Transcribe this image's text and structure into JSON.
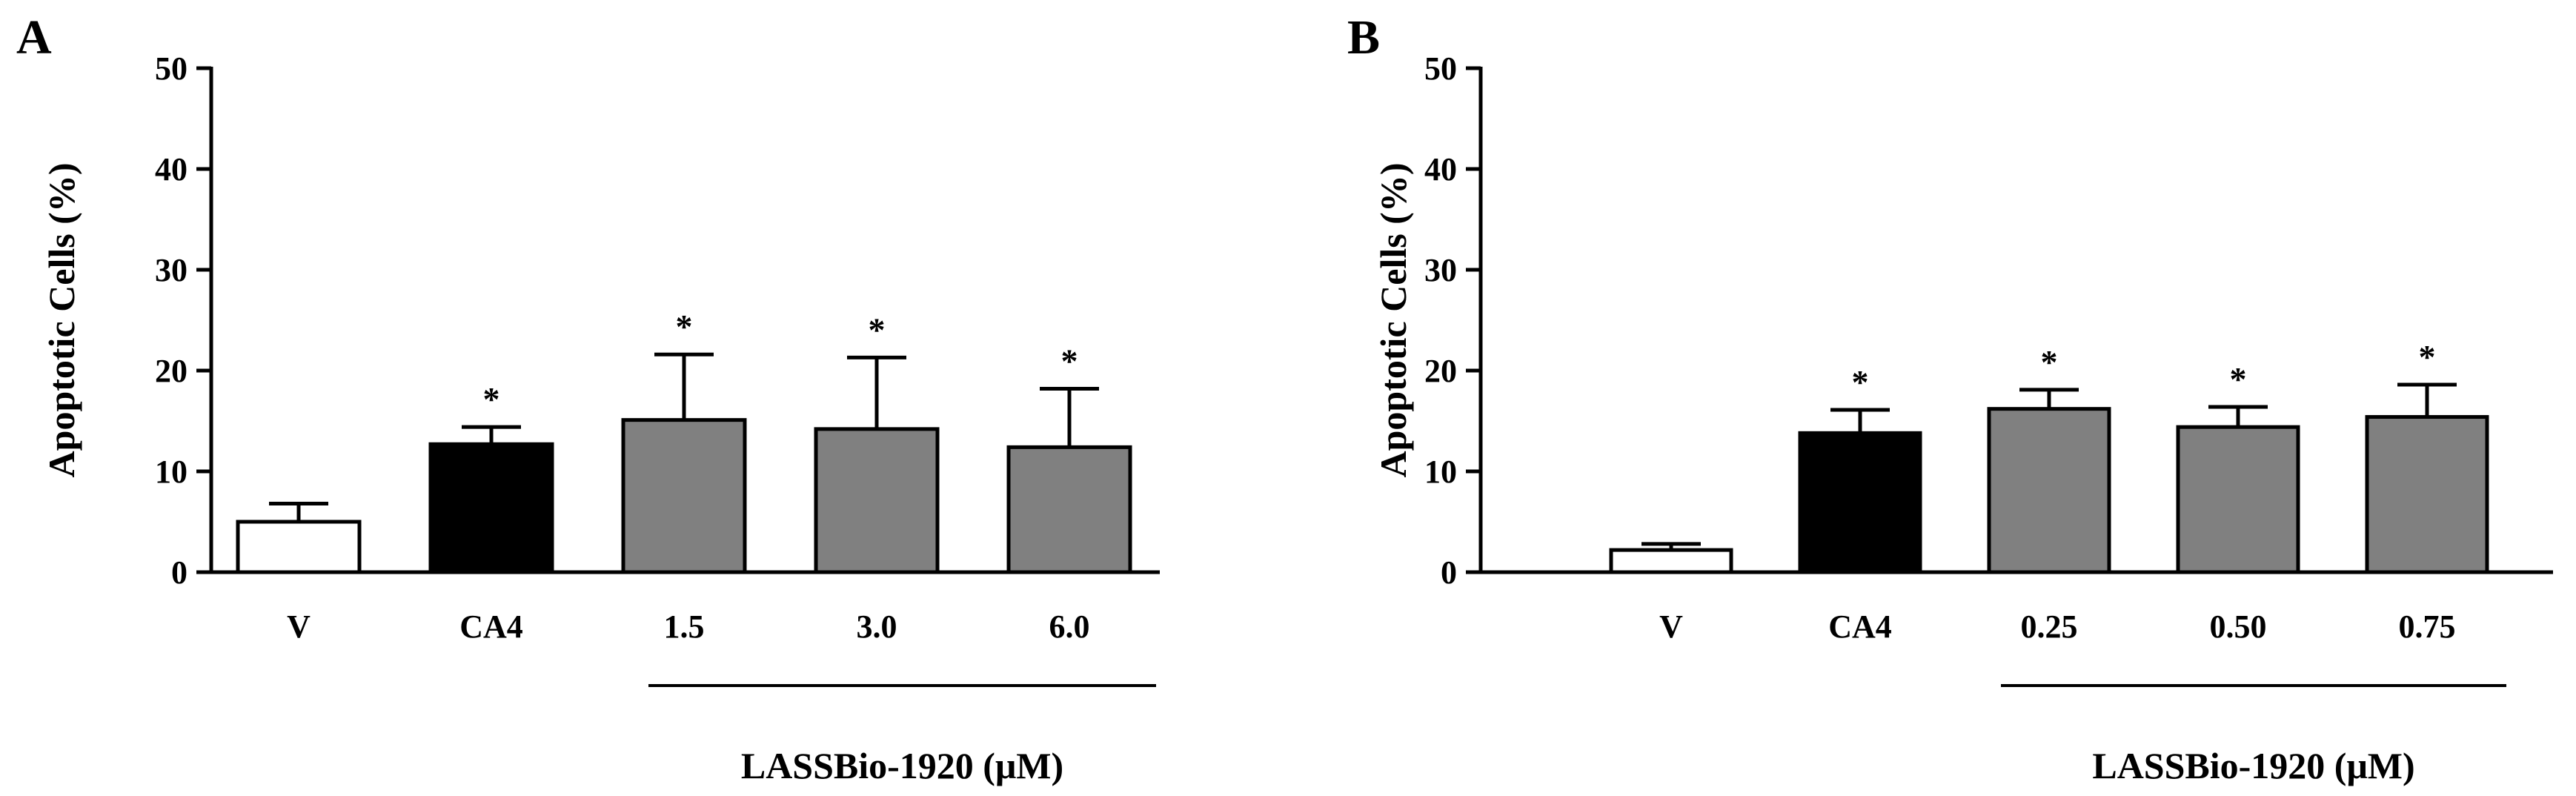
{
  "chart_data": [
    {
      "panel": "A",
      "type": "bar",
      "ylabel": "Apoptotic Cells (%)",
      "ylim": [
        0,
        50
      ],
      "yticks": [
        "0",
        "10",
        "20",
        "30",
        "40",
        "50"
      ],
      "categories": [
        "V",
        "CA4",
        "1.5",
        "3.0",
        "6.0"
      ],
      "values": [
        5,
        12.7,
        15.1,
        14.2,
        12.4
      ],
      "errors": [
        1.8,
        1.7,
        6.5,
        7.1,
        5.8
      ],
      "significance": [
        "",
        "*",
        "*",
        "*",
        "*"
      ],
      "colors": [
        "#ffffff",
        "#000000",
        "#808080",
        "#808080",
        "#808080"
      ],
      "group_label": "LASSBio-1920 (μM)",
      "group_categories": [
        "1.5",
        "3.0",
        "6.0"
      ]
    },
    {
      "panel": "B",
      "type": "bar",
      "ylabel": "Apoptotic Cells (%)",
      "ylim": [
        0,
        50
      ],
      "yticks": [
        "0",
        "10",
        "20",
        "30",
        "40",
        "50"
      ],
      "categories": [
        "V",
        "CA4",
        "0.25",
        "0.50",
        "0.75"
      ],
      "values": [
        2.2,
        13.8,
        16.2,
        14.4,
        15.4
      ],
      "errors": [
        0.6,
        2.3,
        1.9,
        2.0,
        3.2
      ],
      "significance": [
        "",
        "*",
        "*",
        "*",
        "*"
      ],
      "colors": [
        "#ffffff",
        "#000000",
        "#808080",
        "#808080",
        "#808080"
      ],
      "group_label": "LASSBio-1920 (μM)",
      "group_categories": [
        "0.25",
        "0.50",
        "0.75"
      ]
    }
  ]
}
